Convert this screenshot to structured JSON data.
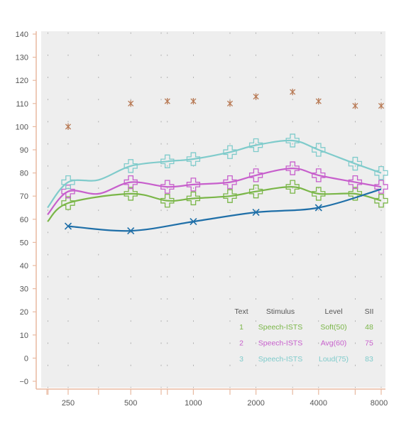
{
  "chart_data": {
    "type": "line",
    "x_scale": "log",
    "categories": [
      "250",
      "500",
      "1000",
      "2000",
      "4000",
      "8000"
    ],
    "x_minor_ticks": [
      150,
      200,
      250,
      350,
      500,
      700,
      750,
      1000,
      1500,
      2000,
      3000,
      4000,
      6000,
      8000
    ],
    "ylim": [
      -5,
      140
    ],
    "y_ticks": [
      "140",
      "130",
      "120",
      "110",
      "100",
      "90",
      "80",
      "70",
      "60",
      "50",
      "40",
      "30",
      "20",
      "10",
      "0",
      "−0"
    ],
    "grid": true,
    "colors": {
      "background": "#eeeeee",
      "axis": "#e8b9a0",
      "soft": "#7ab648",
      "avg": "#c75fcc",
      "loud": "#7fcbcb",
      "threshold": "#1f6fa8",
      "ucl": "#b87a55"
    },
    "series": [
      {
        "name": "Soft(50)",
        "key": "soft",
        "marker": "cross",
        "x": [
          150,
          250,
          500,
          750,
          1000,
          1500,
          2000,
          3000,
          4000,
          6000,
          8000
        ],
        "values": [
          59,
          67,
          71,
          68,
          69,
          70,
          72,
          74,
          71,
          71,
          68
        ],
        "marker_x": [
          250,
          500,
          750,
          1000,
          1500,
          2000,
          3000,
          4000,
          6000,
          8000
        ]
      },
      {
        "name": "Avg(60)",
        "key": "avg",
        "marker": "cross",
        "x": [
          150,
          250,
          350,
          500,
          750,
          1000,
          1500,
          2000,
          3000,
          4000,
          6000,
          8000
        ],
        "values": [
          62,
          72,
          71,
          76,
          74,
          75,
          76,
          79,
          82,
          79,
          76,
          74
        ],
        "marker_x": [
          250,
          500,
          750,
          1000,
          1500,
          2000,
          3000,
          4000,
          6000,
          8000
        ]
      },
      {
        "name": "Loud(75)",
        "key": "loud",
        "marker": "cross",
        "x": [
          150,
          250,
          350,
          500,
          750,
          1000,
          1500,
          2000,
          3000,
          4000,
          6000,
          8000
        ],
        "values": [
          65,
          76,
          77,
          83,
          85,
          86,
          89,
          92,
          94,
          90,
          84,
          80
        ],
        "marker_x": [
          250,
          500,
          750,
          1000,
          1500,
          2000,
          3000,
          4000,
          6000,
          8000
        ]
      },
      {
        "key": "threshold",
        "marker": "x",
        "x": [
          250,
          500,
          1000,
          2000,
          4000,
          8000
        ],
        "values": [
          57,
          55,
          59,
          63,
          65,
          73
        ],
        "marker_x": [
          250,
          500,
          1000,
          2000,
          4000
        ]
      },
      {
        "key": "ucl",
        "marker": "asterisk",
        "line": false,
        "x": [
          250,
          500,
          750,
          1000,
          1500,
          2000,
          3000,
          4000,
          6000,
          8000
        ],
        "values": [
          100,
          110,
          111,
          111,
          110,
          113,
          115,
          111,
          109,
          109
        ]
      }
    ],
    "legend": {
      "placement": "bottom-right",
      "headers": [
        "Text",
        "Stimulus",
        "Level",
        "SII"
      ],
      "rows": [
        {
          "text": "1",
          "stimulus": "Speech-ISTS",
          "level": "Soft(50)",
          "sii": "48",
          "key": "soft"
        },
        {
          "text": "2",
          "stimulus": "Speech-ISTS",
          "level": "Avg(60)",
          "sii": "75",
          "key": "avg"
        },
        {
          "text": "3",
          "stimulus": "Speech-ISTS",
          "level": "Loud(75)",
          "sii": "83",
          "key": "loud"
        }
      ]
    }
  }
}
